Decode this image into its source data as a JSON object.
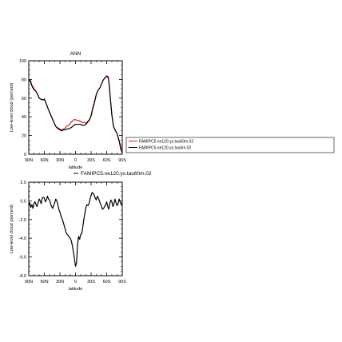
{
  "chart_data": [
    {
      "type": "line",
      "title": "ANN",
      "xlabel": "latitude",
      "ylabel": "Low-level cloud (percent)",
      "xlim": [
        90,
        -90
      ],
      "ylim": [
        0,
        100
      ],
      "x_ticks": [
        90,
        60,
        30,
        0,
        -30,
        -60,
        -90
      ],
      "x_tick_labels": [
        "90N",
        "60N",
        "30N",
        "0",
        "30S",
        "60S",
        "90S"
      ],
      "y_ticks": [
        0,
        20,
        40,
        60,
        80,
        100
      ],
      "y_tick_labels": [
        "0",
        "20",
        "40",
        "60",
        "80",
        "100"
      ],
      "legend_position": "right",
      "series": [
        {
          "name": "FAMIPC5.ne120.ys.tau60m.02",
          "color": "#e02020",
          "x": [
            90,
            87,
            84,
            80,
            77,
            73,
            70,
            67,
            63,
            60,
            57,
            53,
            50,
            47,
            43,
            40,
            37,
            33,
            30,
            27,
            23,
            20,
            17,
            13,
            10,
            7,
            3,
            0,
            -3,
            -7,
            -10,
            -13,
            -17,
            -20,
            -23,
            -27,
            -30,
            -33,
            -37,
            -40,
            -43,
            -47,
            -50,
            -53,
            -57,
            -60,
            -63,
            -65,
            -67,
            -70,
            -73,
            -77,
            -80,
            -84,
            -87,
            -90
          ],
          "y": [
            77,
            79,
            74,
            70,
            68,
            64,
            60,
            59,
            58,
            59,
            55,
            49,
            45,
            41,
            36,
            32,
            29,
            28,
            27,
            26,
            27,
            28,
            30,
            31,
            33,
            35,
            37,
            37,
            36,
            36,
            35,
            34,
            34,
            33,
            35,
            37,
            41,
            48,
            56,
            64,
            68,
            71,
            75,
            79,
            82,
            84,
            83,
            74,
            60,
            42,
            30,
            25,
            22,
            15,
            8,
            3
          ]
        },
        {
          "name": "FAMIPC5.ne120.ys.tau5m.02",
          "color": "#000000",
          "x": [
            90,
            87,
            84,
            80,
            77,
            73,
            70,
            67,
            63,
            60,
            57,
            53,
            50,
            47,
            43,
            40,
            37,
            33,
            30,
            27,
            23,
            20,
            17,
            13,
            10,
            7,
            3,
            0,
            -3,
            -7,
            -10,
            -13,
            -17,
            -20,
            -23,
            -27,
            -30,
            -33,
            -37,
            -40,
            -43,
            -47,
            -50,
            -53,
            -57,
            -60,
            -63,
            -65,
            -67,
            -70,
            -73,
            -77,
            -80,
            -84,
            -87,
            -90
          ],
          "y": [
            78,
            79,
            73,
            69,
            68,
            64,
            60,
            59,
            58,
            59,
            55,
            49,
            45,
            41,
            36,
            32,
            29,
            27,
            26,
            25,
            26,
            26,
            27,
            27,
            28,
            29,
            31,
            32,
            32,
            32,
            32,
            31,
            31,
            32,
            34,
            37,
            41,
            49,
            57,
            64,
            68,
            71,
            75,
            79,
            82,
            83,
            82,
            74,
            60,
            42,
            30,
            25,
            22,
            14,
            6,
            1
          ]
        }
      ]
    },
    {
      "type": "line",
      "title": "FAMIPC5.ne120.ys.tau60m.02",
      "xlabel": "latitude",
      "ylabel": "Low-level cloud (percent)",
      "xlim": [
        90,
        -90
      ],
      "ylim": [
        -8,
        2
      ],
      "x_ticks": [
        90,
        60,
        30,
        0,
        -30,
        -60,
        -90
      ],
      "x_tick_labels": [
        "90N",
        "60N",
        "30N",
        "0",
        "30S",
        "60S",
        "90S"
      ],
      "y_ticks": [
        -8,
        -6,
        -4,
        -2,
        0,
        2
      ],
      "y_tick_labels": [
        "-8.0",
        "-6.0",
        "-4.0",
        "-2.0",
        "0.0",
        "2.0"
      ],
      "series": [
        {
          "color": "#000000",
          "x": [
            90,
            88,
            86,
            84,
            82,
            80,
            78,
            76,
            74,
            72,
            70,
            68,
            66,
            64,
            62,
            60,
            58,
            56,
            54,
            52,
            50,
            48,
            46,
            44,
            42,
            40,
            38,
            36,
            34,
            32,
            30,
            28,
            26,
            24,
            22,
            20,
            18,
            16,
            14,
            12,
            10,
            8,
            6,
            4,
            2,
            0,
            -2,
            -4,
            -6,
            -8,
            -10,
            -12,
            -14,
            -16,
            -18,
            -20,
            -22,
            -24,
            -26,
            -28,
            -30,
            -32,
            -34,
            -36,
            -38,
            -40,
            -42,
            -44,
            -46,
            -48,
            -50,
            -52,
            -54,
            -56,
            -58,
            -60,
            -62,
            -64,
            -66,
            -68,
            -70,
            -72,
            -74,
            -76,
            -78,
            -80,
            -82,
            -84,
            -86,
            -88,
            -90
          ],
          "y": [
            -0.5,
            -0.2,
            -0.7,
            -0.4,
            -0.8,
            -0.3,
            -0.1,
            -0.4,
            -0.6,
            -0.2,
            0.2,
            0.0,
            -0.3,
            0.3,
            0.4,
            0.3,
            -0.1,
            0.1,
            0.5,
            0.2,
            0.1,
            -0.3,
            -0.6,
            -0.8,
            -0.5,
            -0.2,
            0.2,
            0.0,
            -0.4,
            -0.9,
            -1.2,
            -1.6,
            -1.9,
            -2.2,
            -2.6,
            -3.0,
            -3.4,
            -3.6,
            -3.7,
            -3.9,
            -4.0,
            -4.3,
            -4.8,
            -5.5,
            -6.2,
            -7.0,
            -6.6,
            -4.6,
            -3.8,
            -4.1,
            -3.6,
            -3.5,
            -2.8,
            -2.0,
            -1.3,
            -0.7,
            -0.4,
            -0.5,
            -0.3,
            0.2,
            0.6,
            0.9,
            0.8,
            0.6,
            0.3,
            0.1,
            0.5,
            0.3,
            0.0,
            -0.3,
            -0.6,
            -0.9,
            -0.8,
            -0.6,
            -0.4,
            -0.1,
            -0.6,
            -0.9,
            -0.3,
            0.1,
            -0.1,
            -0.6,
            -0.3,
            0.2,
            -0.2,
            -0.5,
            -0.3,
            0.2,
            -0.1,
            -0.4,
            -0.2
          ]
        }
      ]
    }
  ]
}
